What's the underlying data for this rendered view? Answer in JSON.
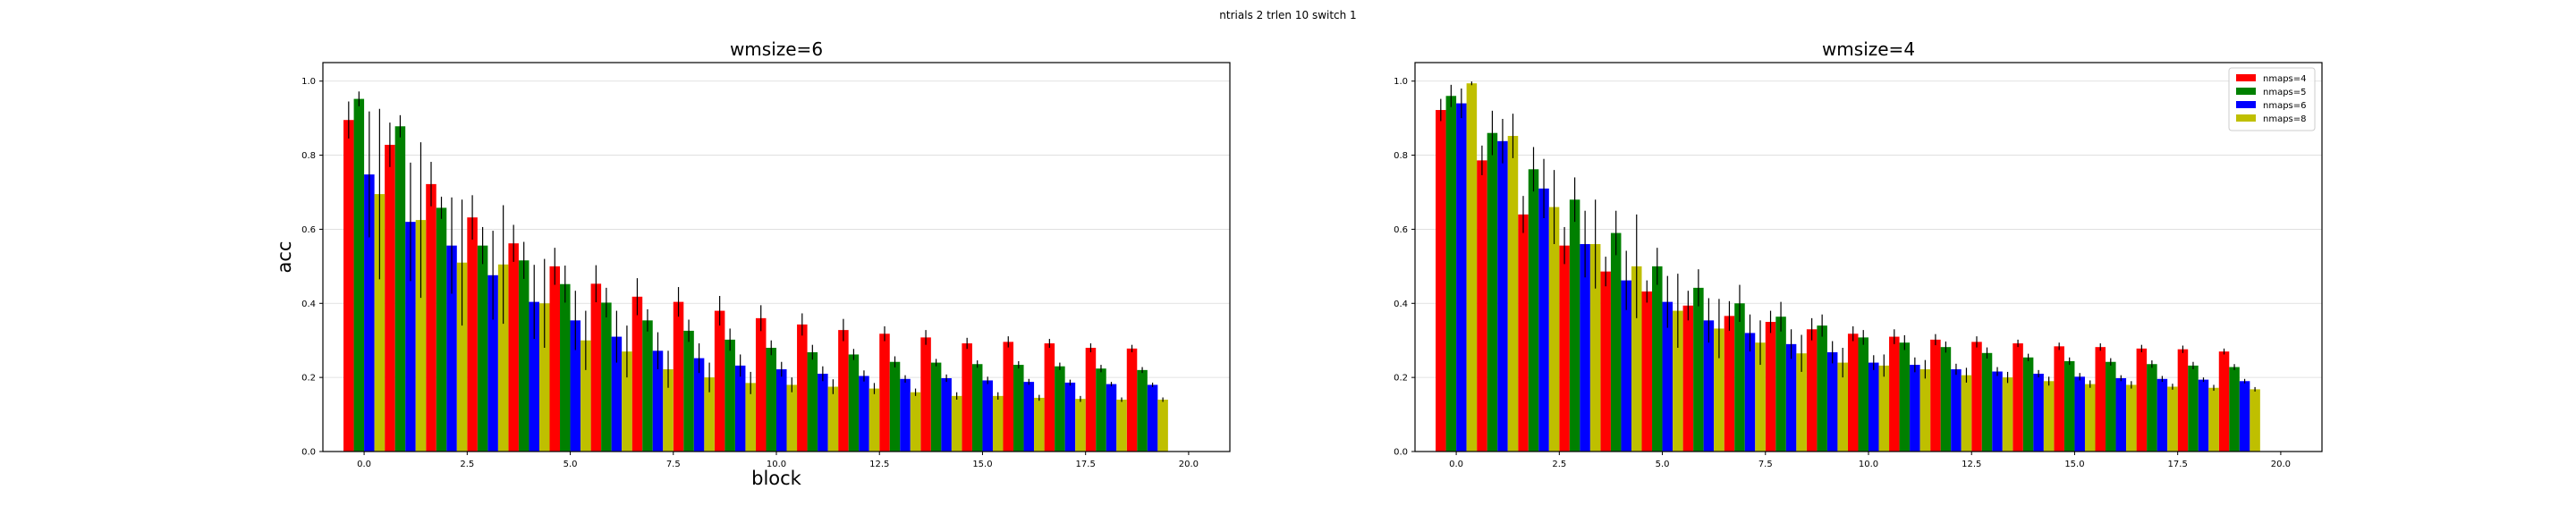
{
  "figure": {
    "suptitle": "ntrials 2 trlen 10 switch 1"
  },
  "chart_data": [
    {
      "type": "bar",
      "title": "wmsize=6",
      "xlabel": "block",
      "ylabel": "acc",
      "xlim": [
        -1.0,
        21.0
      ],
      "ylim": [
        0,
        1.05
      ],
      "xticks": [
        0.0,
        2.5,
        5.0,
        7.5,
        10.0,
        12.5,
        15.0,
        17.5,
        20.0
      ],
      "xtick_labels": [
        "0.0",
        "2.5",
        "5.0",
        "7.5",
        "10.0",
        "12.5",
        "15.0",
        "17.5",
        "20.0"
      ],
      "yticks": [
        0.0,
        0.2,
        0.4,
        0.6,
        0.8,
        1.0
      ],
      "ytick_labels": [
        "0.0",
        "0.2",
        "0.4",
        "0.6",
        "0.8",
        "1.0"
      ],
      "grid": "y",
      "legend": null,
      "x": [
        0,
        1,
        2,
        3,
        4,
        5,
        6,
        7,
        8,
        9,
        10,
        11,
        12,
        13,
        14,
        15,
        16,
        17,
        18,
        19
      ],
      "bar_width": 0.25,
      "series": [
        {
          "color": "#ff0000",
          "values": [
            0.895,
            0.828,
            0.722,
            0.632,
            0.562,
            0.5,
            0.453,
            0.418,
            0.404,
            0.38,
            0.36,
            0.343,
            0.328,
            0.318,
            0.308,
            0.292,
            0.296,
            0.292,
            0.28,
            0.278
          ],
          "errors": [
            0.05,
            0.06,
            0.06,
            0.06,
            0.05,
            0.05,
            0.05,
            0.05,
            0.04,
            0.04,
            0.035,
            0.03,
            0.03,
            0.02,
            0.02,
            0.015,
            0.015,
            0.012,
            0.012,
            0.01
          ]
        },
        {
          "color": "#008000",
          "values": [
            0.952,
            0.878,
            0.658,
            0.556,
            0.516,
            0.452,
            0.402,
            0.354,
            0.326,
            0.302,
            0.28,
            0.268,
            0.262,
            0.242,
            0.24,
            0.236,
            0.234,
            0.23,
            0.224,
            0.22
          ],
          "errors": [
            0.02,
            0.03,
            0.03,
            0.05,
            0.05,
            0.05,
            0.04,
            0.03,
            0.03,
            0.03,
            0.02,
            0.02,
            0.015,
            0.015,
            0.01,
            0.01,
            0.01,
            0.01,
            0.01,
            0.008
          ]
        },
        {
          "color": "#0000ff",
          "values": [
            0.748,
            0.62,
            0.556,
            0.476,
            0.404,
            0.354,
            0.31,
            0.272,
            0.252,
            0.232,
            0.222,
            0.21,
            0.204,
            0.196,
            0.198,
            0.192,
            0.188,
            0.186,
            0.182,
            0.18
          ],
          "errors": [
            0.17,
            0.16,
            0.13,
            0.12,
            0.1,
            0.08,
            0.07,
            0.05,
            0.04,
            0.03,
            0.02,
            0.02,
            0.015,
            0.01,
            0.01,
            0.01,
            0.008,
            0.008,
            0.006,
            0.006
          ]
        },
        {
          "color": "#bfbf00",
          "values": [
            0.695,
            0.625,
            0.51,
            0.505,
            0.4,
            0.3,
            0.27,
            0.222,
            0.2,
            0.185,
            0.18,
            0.175,
            0.17,
            0.16,
            0.15,
            0.15,
            0.145,
            0.142,
            0.14,
            0.14
          ],
          "errors": [
            0.23,
            0.21,
            0.17,
            0.16,
            0.12,
            0.08,
            0.07,
            0.05,
            0.04,
            0.03,
            0.02,
            0.02,
            0.015,
            0.01,
            0.01,
            0.01,
            0.008,
            0.008,
            0.006,
            0.006
          ]
        }
      ]
    },
    {
      "type": "bar",
      "title": "wmsize=4",
      "xlabel": "",
      "ylabel": "",
      "xlim": [
        -1.0,
        21.0
      ],
      "ylim": [
        0,
        1.05
      ],
      "xticks": [
        0.0,
        2.5,
        5.0,
        7.5,
        10.0,
        12.5,
        15.0,
        17.5,
        20.0
      ],
      "xtick_labels": [
        "0.0",
        "2.5",
        "5.0",
        "7.5",
        "10.0",
        "12.5",
        "15.0",
        "17.5",
        "20.0"
      ],
      "yticks": [
        0.0,
        0.2,
        0.4,
        0.6,
        0.8,
        1.0
      ],
      "ytick_labels": [
        "0.0",
        "0.2",
        "0.4",
        "0.6",
        "0.8",
        "1.0"
      ],
      "grid": "y",
      "legend": "top-right",
      "x": [
        0,
        1,
        2,
        3,
        4,
        5,
        6,
        7,
        8,
        9,
        10,
        11,
        12,
        13,
        14,
        15,
        16,
        17,
        18,
        19
      ],
      "bar_width": 0.25,
      "series": [
        {
          "name": "nmaps=4",
          "color": "#ff0000",
          "values": [
            0.922,
            0.786,
            0.64,
            0.556,
            0.486,
            0.432,
            0.394,
            0.366,
            0.35,
            0.33,
            0.318,
            0.31,
            0.302,
            0.296,
            0.292,
            0.284,
            0.282,
            0.278,
            0.276,
            0.27
          ],
          "errors": [
            0.03,
            0.04,
            0.05,
            0.05,
            0.04,
            0.03,
            0.04,
            0.04,
            0.03,
            0.03,
            0.02,
            0.02,
            0.015,
            0.015,
            0.01,
            0.01,
            0.01,
            0.01,
            0.01,
            0.008
          ]
        },
        {
          "name": "nmaps=5",
          "color": "#008000",
          "values": [
            0.96,
            0.86,
            0.762,
            0.68,
            0.59,
            0.5,
            0.442,
            0.4,
            0.364,
            0.34,
            0.308,
            0.294,
            0.282,
            0.266,
            0.254,
            0.244,
            0.242,
            0.236,
            0.232,
            0.228
          ],
          "errors": [
            0.03,
            0.06,
            0.06,
            0.06,
            0.06,
            0.05,
            0.05,
            0.05,
            0.04,
            0.03,
            0.02,
            0.02,
            0.015,
            0.015,
            0.01,
            0.01,
            0.01,
            0.01,
            0.01,
            0.008
          ]
        },
        {
          "name": "nmaps=6",
          "color": "#0000ff",
          "values": [
            0.94,
            0.838,
            0.71,
            0.56,
            0.462,
            0.404,
            0.354,
            0.32,
            0.29,
            0.268,
            0.24,
            0.234,
            0.222,
            0.216,
            0.21,
            0.202,
            0.198,
            0.196,
            0.194,
            0.19
          ],
          "errors": [
            0.04,
            0.06,
            0.08,
            0.09,
            0.08,
            0.07,
            0.06,
            0.05,
            0.04,
            0.03,
            0.02,
            0.02,
            0.015,
            0.012,
            0.01,
            0.01,
            0.008,
            0.008,
            0.006,
            0.006
          ]
        },
        {
          "name": "nmaps=8",
          "color": "#bfbf00",
          "values": [
            0.994,
            0.852,
            0.66,
            0.56,
            0.5,
            0.38,
            0.332,
            0.294,
            0.265,
            0.24,
            0.232,
            0.222,
            0.206,
            0.2,
            0.19,
            0.182,
            0.18,
            0.175,
            0.172,
            0.168
          ],
          "errors": [
            0.005,
            0.06,
            0.1,
            0.12,
            0.14,
            0.1,
            0.08,
            0.06,
            0.05,
            0.04,
            0.03,
            0.025,
            0.02,
            0.015,
            0.012,
            0.01,
            0.01,
            0.008,
            0.008,
            0.006
          ]
        }
      ]
    }
  ]
}
